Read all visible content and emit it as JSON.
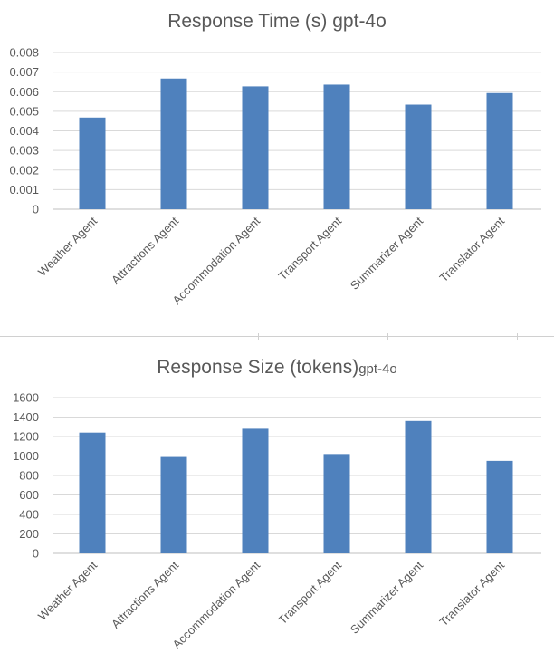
{
  "colors": {
    "bar": "#4f81bd",
    "grid": "#d9d9d9",
    "text": "#595959"
  },
  "chart_data": [
    {
      "type": "bar",
      "title": "Response Time (s) gpt-4o",
      "title_suffix": "",
      "categories": [
        "Weather Agent",
        "Attractions Agent",
        "Accommodation Agent",
        "Transport Agent",
        "Summarizer Agent",
        "Translator Agent"
      ],
      "values": [
        0.00468,
        0.00667,
        0.00627,
        0.00636,
        0.00534,
        0.00593
      ],
      "yticks": [
        "0",
        "0.001",
        "0.002",
        "0.003",
        "0.004",
        "0.005",
        "0.006",
        "0.007",
        "0.008"
      ],
      "ylim": [
        0,
        0.008
      ],
      "grid": true,
      "legend": "none"
    },
    {
      "type": "bar",
      "title": "Response Size (tokens)",
      "title_suffix": "gpt-4o",
      "categories": [
        "Weather Agent",
        "Attractions Agent",
        "Accommodation Agent",
        "Transport Agent",
        "Summarizer Agent",
        "Translator Agent"
      ],
      "values": [
        1240,
        990,
        1280,
        1020,
        1360,
        950
      ],
      "yticks": [
        "0",
        "200",
        "400",
        "600",
        "800",
        "1000",
        "1200",
        "1400",
        "1600"
      ],
      "ylim": [
        0,
        1600
      ],
      "grid": true,
      "legend": "none"
    }
  ]
}
